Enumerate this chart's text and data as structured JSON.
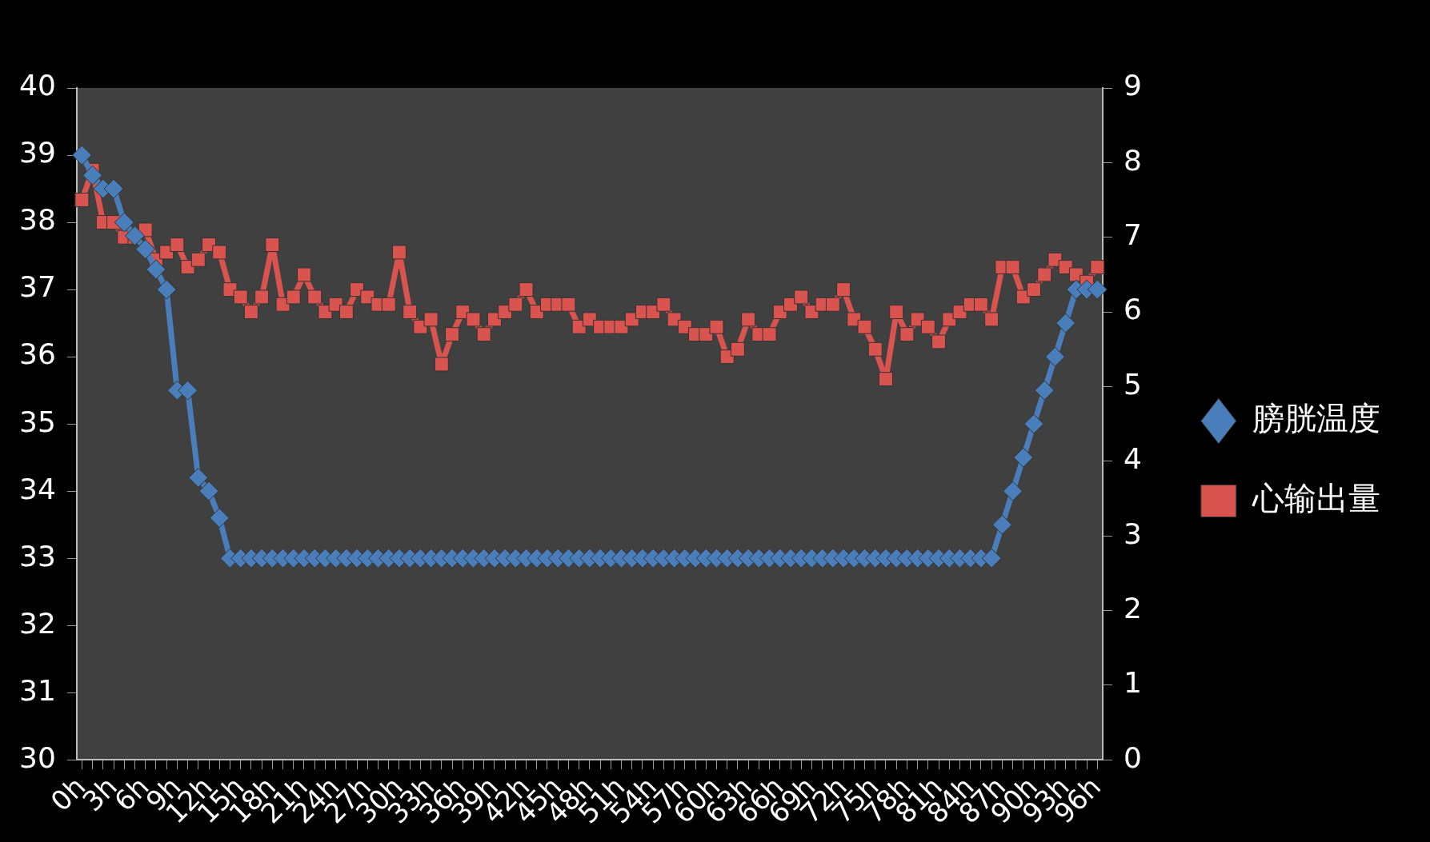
{
  "chart_data": {
    "type": "line",
    "categories": [
      "0h",
      null,
      null,
      "3h",
      null,
      null,
      "6h",
      null,
      null,
      "9h",
      null,
      null,
      "12h",
      null,
      null,
      "15h",
      null,
      null,
      "18h",
      null,
      null,
      "21h",
      null,
      null,
      "24h",
      null,
      null,
      "27h",
      null,
      null,
      "30h",
      null,
      null,
      "33h",
      null,
      null,
      "36h",
      null,
      null,
      "39h",
      null,
      null,
      "42h",
      null,
      null,
      "45h",
      null,
      null,
      "48h",
      null,
      null,
      "51h",
      null,
      null,
      "54h",
      null,
      null,
      "57h",
      null,
      null,
      "60h",
      null,
      null,
      "63h",
      null,
      null,
      "66h",
      null,
      null,
      "69h",
      null,
      null,
      "72h",
      null,
      null,
      "75h",
      null,
      null,
      "78h",
      null,
      null,
      "81h",
      null,
      null,
      "84h",
      null,
      null,
      "87h",
      null,
      null,
      "90h",
      null,
      null,
      "93h",
      null,
      null,
      "96h"
    ],
    "series": [
      {
        "name": "膀胱温度",
        "color": "#4a7ebb",
        "marker": "diamond",
        "values": [
          39,
          38.7,
          38.5,
          38.5,
          38,
          37.8,
          37.6,
          37.3,
          37,
          35.5,
          35.5,
          34.2,
          34,
          33.6,
          33,
          33,
          33,
          33,
          33,
          33,
          33,
          33,
          33,
          33,
          33,
          33,
          33,
          33,
          33,
          33,
          33,
          33,
          33,
          33,
          33,
          33,
          33,
          33,
          33,
          33,
          33,
          33,
          33,
          33,
          33,
          33,
          33,
          33,
          33,
          33,
          33,
          33,
          33,
          33,
          33,
          33,
          33,
          33,
          33,
          33,
          33,
          33,
          33,
          33,
          33,
          33,
          33,
          33,
          33,
          33,
          33,
          33,
          33,
          33,
          33,
          33,
          33,
          33,
          33,
          33,
          33,
          33,
          33,
          33,
          33,
          33,
          33,
          33.5,
          34,
          34.5,
          35,
          35.5,
          36,
          36.5,
          37,
          37,
          37
        ]
      },
      {
        "name": "心输出量",
        "color": "#d9534f",
        "marker": "square",
        "axis": "y2",
        "values": [
          7.5,
          7.9,
          7.2,
          7.2,
          7.0,
          7.0,
          7.1,
          6.7,
          6.8,
          6.9,
          6.6,
          6.7,
          6.9,
          6.8,
          6.3,
          6.2,
          6.0,
          6.2,
          6.9,
          6.1,
          6.2,
          6.5,
          6.2,
          6.0,
          6.1,
          6.0,
          6.3,
          6.2,
          6.1,
          6.1,
          6.8,
          6.0,
          5.8,
          5.9,
          5.3,
          5.7,
          6.0,
          5.9,
          5.7,
          5.9,
          6.0,
          6.1,
          6.3,
          6.0,
          6.1,
          6.1,
          6.1,
          5.8,
          5.9,
          5.8,
          5.8,
          5.8,
          5.9,
          6.0,
          6.0,
          6.1,
          5.9,
          5.8,
          5.7,
          5.7,
          5.8,
          5.4,
          5.5,
          5.9,
          5.7,
          5.7,
          6.0,
          6.1,
          6.2,
          6.0,
          6.1,
          6.1,
          6.3,
          5.9,
          5.8,
          5.5,
          5.1,
          6.0,
          5.7,
          5.9,
          5.8,
          5.6,
          5.9,
          6.0,
          6.1,
          6.1,
          5.9,
          6.6,
          6.6,
          6.2,
          6.3,
          6.5,
          6.7,
          6.6,
          6.5,
          6.4,
          6.6
        ]
      }
    ],
    "ylim": [
      30,
      40
    ],
    "yticks": [
      30,
      31,
      32,
      33,
      34,
      35,
      36,
      37,
      38,
      39,
      40
    ],
    "y2lim": [
      0,
      9
    ],
    "y2ticks": [
      0,
      1,
      2,
      3,
      4,
      5,
      6,
      7,
      8,
      9
    ],
    "grid": false,
    "legend": "right"
  }
}
